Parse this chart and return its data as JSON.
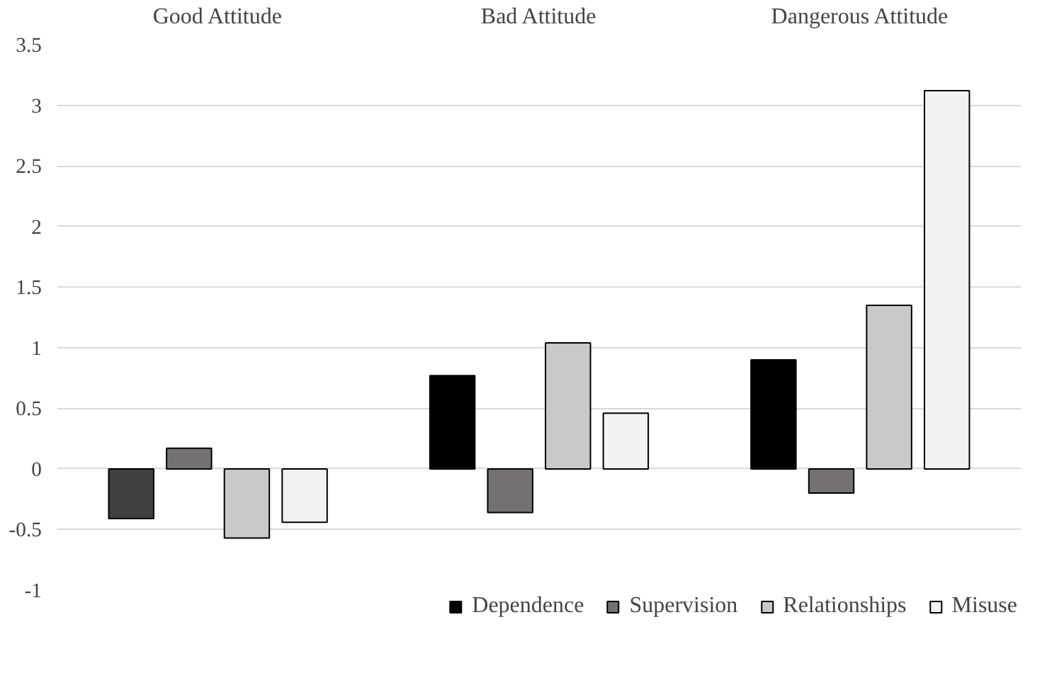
{
  "chart_data": {
    "type": "bar",
    "categories": [
      "Good Attitude",
      "Bad Attitude",
      "Dangerous Attitude"
    ],
    "series": [
      {
        "name": "Dependence",
        "color": "#000000",
        "colors": [
          "#404040",
          "#000000",
          "#000000"
        ],
        "values": [
          -0.41,
          0.77,
          0.9
        ]
      },
      {
        "name": "Supervision",
        "color": "#767171",
        "values": [
          0.17,
          -0.36,
          -0.2
        ]
      },
      {
        "name": "Relationships",
        "color": "#c9c9c9",
        "values": [
          -0.57,
          1.04,
          1.35
        ]
      },
      {
        "name": "Misuse",
        "color": "#f2f2f2",
        "values": [
          -0.44,
          0.46,
          3.12
        ]
      }
    ],
    "ylim": [
      -1,
      3.5
    ],
    "yticks": [
      -1,
      -0.5,
      0,
      0.5,
      1,
      1.5,
      2,
      2.5,
      3,
      3.5
    ],
    "grid": "y",
    "legend": "bottom"
  }
}
